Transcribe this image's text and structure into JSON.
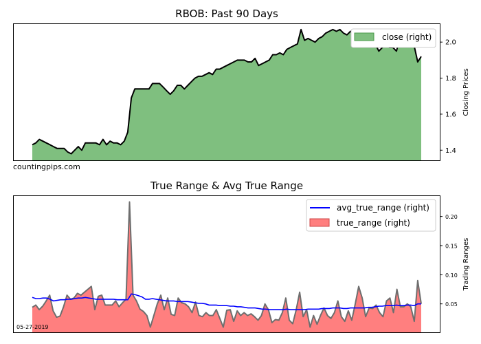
{
  "watermark": "countingpips.com",
  "date_label": "05-27-2019",
  "chart_data": [
    {
      "type": "area",
      "title": "RBOB: Past 90 Days",
      "ylabel": "Closing Prices",
      "ylim": [
        1.34,
        2.1
      ],
      "yticks": [
        1.4,
        1.6,
        1.8,
        2.0
      ],
      "ytick_labels": [
        "1.4",
        "1.6",
        "1.8",
        "2.0"
      ],
      "yaxis_side": "right",
      "legend_position": "upper right",
      "fill_color": "#7fbf7f",
      "line_color": "#000000",
      "series": [
        {
          "name": "close (right)",
          "values": [
            1.43,
            1.44,
            1.46,
            1.45,
            1.44,
            1.43,
            1.42,
            1.41,
            1.41,
            1.41,
            1.39,
            1.38,
            1.4,
            1.42,
            1.4,
            1.44,
            1.44,
            1.44,
            1.44,
            1.43,
            1.46,
            1.43,
            1.45,
            1.44,
            1.44,
            1.43,
            1.45,
            1.5,
            1.69,
            1.74,
            1.74,
            1.74,
            1.74,
            1.74,
            1.77,
            1.77,
            1.77,
            1.75,
            1.73,
            1.71,
            1.73,
            1.76,
            1.76,
            1.74,
            1.76,
            1.78,
            1.8,
            1.81,
            1.81,
            1.82,
            1.83,
            1.82,
            1.85,
            1.85,
            1.86,
            1.87,
            1.88,
            1.89,
            1.9,
            1.9,
            1.9,
            1.89,
            1.89,
            1.91,
            1.87,
            1.88,
            1.89,
            1.9,
            1.93,
            1.93,
            1.94,
            1.93,
            1.96,
            1.97,
            1.98,
            1.99,
            2.07,
            2.01,
            2.02,
            2.01,
            2.0,
            2.02,
            2.03,
            2.05,
            2.06,
            2.07,
            2.06,
            2.07,
            2.05,
            2.04,
            2.06,
            2.04,
            2.01,
            2.02,
            2.01,
            2.0,
            2.0,
            1.99,
            1.95,
            1.97,
            1.98,
            1.97,
            1.97,
            1.95,
            2.03,
            2.02,
            2.0,
            2.0,
            1.98,
            1.89,
            1.92
          ]
        }
      ]
    },
    {
      "type": "area",
      "title": "True Range & Avg True Range",
      "ylabel": "Trading Ranges",
      "ylim": [
        0,
        0.235
      ],
      "yticks": [
        0.05,
        0.1,
        0.15,
        0.2
      ],
      "ytick_labels": [
        "0.05",
        "0.10",
        "0.15",
        "0.20"
      ],
      "yaxis_side": "right",
      "legend_position": "upper right",
      "series": [
        {
          "name": "avg_true_range (right)",
          "color": "#0000ff",
          "values": [
            0.061,
            0.059,
            0.059,
            0.06,
            0.06,
            0.058,
            0.055,
            0.056,
            0.057,
            0.057,
            0.058,
            0.058,
            0.059,
            0.06,
            0.06,
            0.061,
            0.06,
            0.059,
            0.058,
            0.058,
            0.058,
            0.058,
            0.058,
            0.058,
            0.057,
            0.057,
            0.057,
            0.057,
            0.067,
            0.066,
            0.064,
            0.062,
            0.058,
            0.058,
            0.059,
            0.058,
            0.057,
            0.056,
            0.055,
            0.055,
            0.055,
            0.054,
            0.054,
            0.054,
            0.054,
            0.053,
            0.052,
            0.051,
            0.051,
            0.05,
            0.048,
            0.048,
            0.048,
            0.047,
            0.047,
            0.047,
            0.046,
            0.046,
            0.045,
            0.045,
            0.044,
            0.043,
            0.043,
            0.043,
            0.042,
            0.041,
            0.041,
            0.04,
            0.04,
            0.04,
            0.04,
            0.04,
            0.041,
            0.04,
            0.04,
            0.04,
            0.04,
            0.04,
            0.041,
            0.041,
            0.041,
            0.041,
            0.042,
            0.042,
            0.042,
            0.043,
            0.043,
            0.043,
            0.042,
            0.042,
            0.043,
            0.043,
            0.043,
            0.043,
            0.043,
            0.044,
            0.044,
            0.045,
            0.046,
            0.046,
            0.047,
            0.047,
            0.047,
            0.048,
            0.047,
            0.047,
            0.048,
            0.048,
            0.047,
            0.05,
            0.05
          ]
        },
        {
          "name": "true_range (right)",
          "fill_color": "#ff7f7f",
          "line_color": "#6e6e6e",
          "values": [
            0.044,
            0.048,
            0.04,
            0.046,
            0.055,
            0.065,
            0.038,
            0.027,
            0.029,
            0.045,
            0.065,
            0.058,
            0.06,
            0.068,
            0.065,
            0.07,
            0.075,
            0.08,
            0.04,
            0.063,
            0.065,
            0.048,
            0.048,
            0.048,
            0.055,
            0.045,
            0.052,
            0.058,
            0.225,
            0.065,
            0.055,
            0.041,
            0.037,
            0.03,
            0.01,
            0.03,
            0.05,
            0.065,
            0.04,
            0.06,
            0.032,
            0.03,
            0.06,
            0.052,
            0.05,
            0.045,
            0.035,
            0.053,
            0.03,
            0.028,
            0.035,
            0.03,
            0.03,
            0.04,
            0.025,
            0.01,
            0.039,
            0.04,
            0.02,
            0.038,
            0.03,
            0.035,
            0.03,
            0.033,
            0.028,
            0.022,
            0.03,
            0.05,
            0.04,
            0.018,
            0.023,
            0.022,
            0.035,
            0.06,
            0.022,
            0.016,
            0.04,
            0.07,
            0.028,
            0.04,
            0.01,
            0.03,
            0.015,
            0.03,
            0.043,
            0.03,
            0.025,
            0.035,
            0.055,
            0.028,
            0.02,
            0.038,
            0.022,
            0.05,
            0.08,
            0.06,
            0.028,
            0.043,
            0.042,
            0.048,
            0.035,
            0.028,
            0.055,
            0.06,
            0.035,
            0.075,
            0.045,
            0.045,
            0.05,
            0.045,
            0.02,
            0.09,
            0.05
          ]
        }
      ]
    }
  ]
}
